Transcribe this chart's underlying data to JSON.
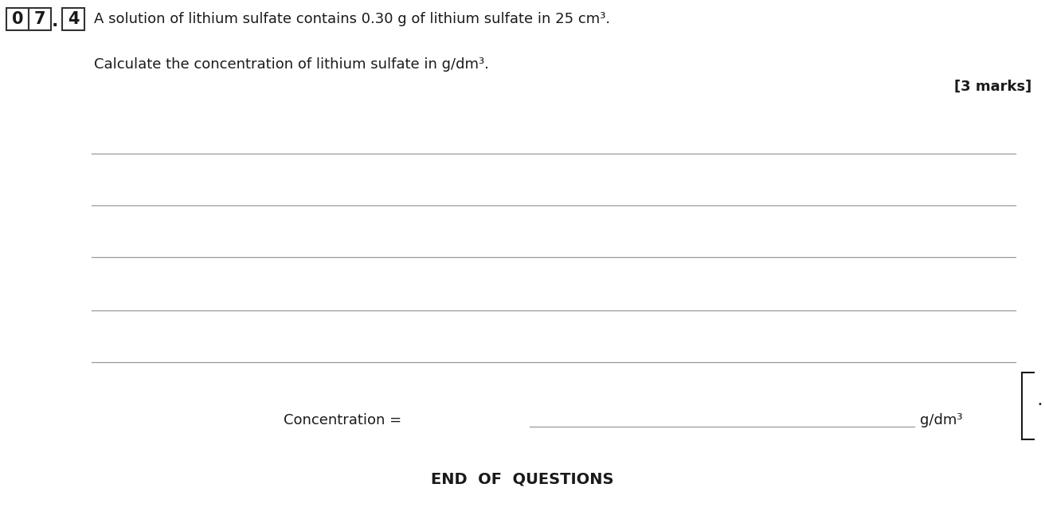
{
  "bg_color": "#ffffff",
  "box_digits": [
    "0",
    "7",
    "4"
  ],
  "title_text": "A solution of lithium sulfate contains 0.30 g of lithium sulfate in 25 cm³.",
  "subtitle_text": "Calculate the concentration of lithium sulfate in g/dm³.",
  "marks_text": "[3 marks]",
  "concentration_label": "Concentration =",
  "concentration_unit": "g/dm³",
  "end_text": "END  OF  QUESTIONS",
  "line_color": "#999999",
  "text_color": "#1a1a1a",
  "box_edge_color": "#333333",
  "font_size_main": 13,
  "font_size_marks": 13,
  "font_size_end": 14
}
